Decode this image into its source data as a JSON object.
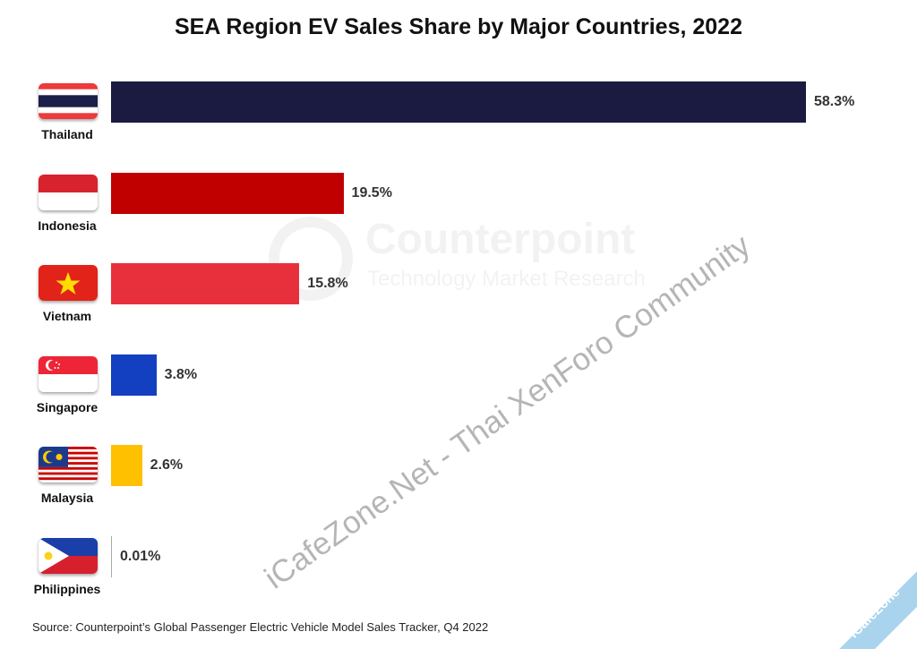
{
  "chart_data": {
    "type": "bar",
    "orientation": "horizontal",
    "title": "SEA Region EV Sales Share by Major Countries, 2022",
    "categories": [
      "Thailand",
      "Indonesia",
      "Vietnam",
      "Singapore",
      "Malaysia",
      "Philippines"
    ],
    "values": [
      58.3,
      19.5,
      15.8,
      3.8,
      2.6,
      0.01
    ],
    "value_labels": [
      "58.3%",
      "19.5%",
      "15.8%",
      "3.8%",
      "2.6%",
      "0.01%"
    ],
    "colors": [
      "#1b1a40",
      "#c00000",
      "#e8303c",
      "#1240c0",
      "#ffc000",
      "#aaaaaa"
    ],
    "xlabel": "",
    "ylabel": "",
    "xlim": [
      0,
      58.3
    ],
    "grid": false,
    "legend": "none",
    "source": "Source: Counterpoint’s Global Passenger Electric Vehicle Model Sales Tracker, Q4 2022"
  },
  "watermarks": {
    "counterpoint": "Counterpoint",
    "counterpoint_sub": "Technology Market Research",
    "site": "iCafeZone.Net - Thai XenForo Community",
    "ribbon": "iCafeZone"
  }
}
